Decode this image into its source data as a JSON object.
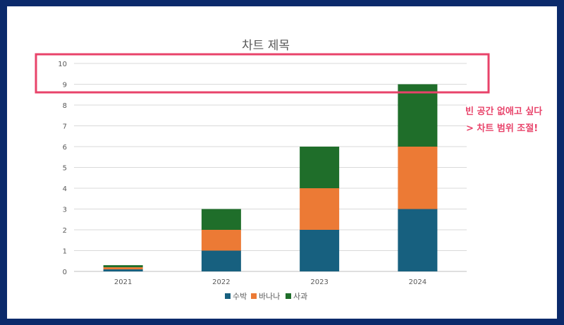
{
  "chart_data": {
    "type": "bar",
    "stacked": true,
    "title": "차트 제목",
    "categories": [
      "2021",
      "2022",
      "2023",
      "2024"
    ],
    "series": [
      {
        "name": "수박",
        "color": "#17607f",
        "values": [
          0.1,
          1,
          2,
          3
        ]
      },
      {
        "name": "바나나",
        "color": "#ec7a35",
        "values": [
          0.1,
          1,
          2,
          3
        ]
      },
      {
        "name": "사과",
        "color": "#1f6e2a",
        "values": [
          0.1,
          1,
          2,
          3
        ]
      }
    ],
    "ylim": [
      0,
      10
    ],
    "yticks": [
      "0",
      "1",
      "2",
      "3",
      "4",
      "5",
      "6",
      "7",
      "8",
      "9",
      "10"
    ],
    "grid": true,
    "legend_position": "bottom"
  },
  "annotation": {
    "line1": "빈 공간 없애고 싶다",
    "line2": "> 차트 범위 조절!",
    "color": "#e8436a"
  }
}
